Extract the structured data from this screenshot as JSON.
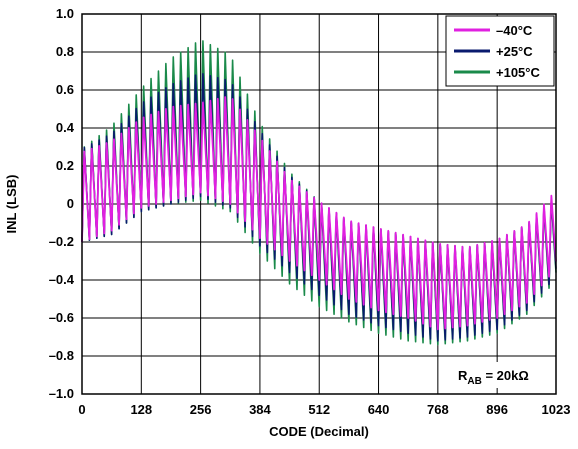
{
  "chart_data": {
    "type": "line",
    "xlabel": "CODE (Decimal)",
    "ylabel": "INL (LSB)",
    "xlim": [
      0,
      1023
    ],
    "ylim": [
      -1.0,
      1.0
    ],
    "x_ticks": [
      0,
      128,
      256,
      384,
      512,
      640,
      768,
      896,
      1023
    ],
    "y_ticks": [
      1.0,
      0.8,
      0.6,
      0.4,
      0.2,
      0,
      -0.2,
      -0.4,
      -0.6,
      -0.8,
      -1.0
    ],
    "x_tick_labels": [
      "0",
      "128",
      "256",
      "384",
      "512",
      "640",
      "768",
      "896",
      "1023"
    ],
    "y_tick_labels": [
      "1.0",
      "0.8",
      "0.6",
      "0.4",
      "0.2",
      "0",
      "–0.2",
      "–0.4",
      "–0.6",
      "–0.8",
      "–1.0"
    ],
    "grid": true,
    "legend_position": "top-right",
    "annotation": {
      "prefix": "R",
      "subscript": "AB",
      "suffix": " = 20kΩ"
    },
    "oscillation_period_codes": 16,
    "envelope_x": [
      0,
      64,
      128,
      192,
      256,
      320,
      384,
      448,
      512,
      576,
      640,
      704,
      768,
      832,
      896,
      960,
      1023
    ],
    "series": [
      {
        "name": "–40°C",
        "color": "#e020e0",
        "envelope_upper": [
          0.28,
          0.34,
          0.46,
          0.52,
          0.54,
          0.58,
          0.36,
          0.14,
          0.02,
          -0.08,
          -0.12,
          -0.16,
          -0.2,
          -0.22,
          -0.18,
          -0.1,
          0.08
        ],
        "envelope_lower": [
          -0.2,
          -0.14,
          -0.02,
          0.02,
          0.06,
          0.0,
          -0.18,
          -0.3,
          -0.4,
          -0.5,
          -0.56,
          -0.6,
          -0.66,
          -0.64,
          -0.6,
          -0.52,
          -0.34
        ]
      },
      {
        "name": "+25°C",
        "color": "#0a1a6e",
        "envelope_upper": [
          0.3,
          0.38,
          0.54,
          0.64,
          0.7,
          0.66,
          0.4,
          0.16,
          0.02,
          -0.08,
          -0.12,
          -0.16,
          -0.2,
          -0.22,
          -0.18,
          -0.1,
          0.06
        ],
        "envelope_lower": [
          -0.2,
          -0.16,
          -0.04,
          0.0,
          0.04,
          -0.02,
          -0.22,
          -0.36,
          -0.48,
          -0.58,
          -0.64,
          -0.68,
          -0.72,
          -0.7,
          -0.66,
          -0.56,
          -0.38
        ]
      },
      {
        "name": "+105°C",
        "color": "#1a8a4a",
        "envelope_upper": [
          0.3,
          0.42,
          0.62,
          0.78,
          0.88,
          0.8,
          0.44,
          0.18,
          0.02,
          -0.08,
          -0.12,
          -0.16,
          -0.2,
          -0.22,
          -0.18,
          -0.1,
          0.04
        ],
        "envelope_lower": [
          -0.2,
          -0.16,
          -0.04,
          0.0,
          0.02,
          -0.04,
          -0.26,
          -0.42,
          -0.54,
          -0.62,
          -0.68,
          -0.72,
          -0.74,
          -0.72,
          -0.68,
          -0.58,
          -0.4
        ]
      }
    ]
  }
}
